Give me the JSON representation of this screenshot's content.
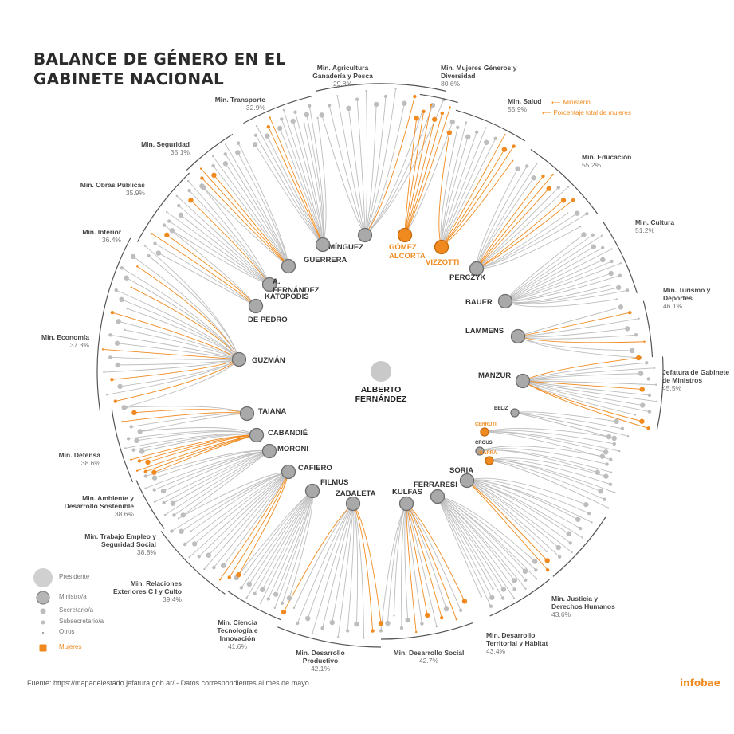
{
  "title": "BALANCE DE GÉNERO EN EL GABINETE NACIONAL",
  "president": "ALBERTO FERNÁNDEZ",
  "colors": {
    "line": "#bdbdbd",
    "node": "#a9a9a9",
    "woman": "#f08a1e",
    "text": "#333333",
    "pct": "#777777"
  },
  "ministries": [
    {
      "name": "Min. Agricultura Ganadería y Pesca",
      "pct": "29.8%",
      "minister": "DOMÍNGUEZ",
      "minister_woman": false
    },
    {
      "name": "Min. Mujeres Géneros y Diversidad",
      "pct": "80.6%",
      "minister": "GÓMEZ ALCORTA",
      "minister_woman": true
    },
    {
      "name": "Min. Salud",
      "pct": "55.9%",
      "minister": "VIZZOTTI",
      "minister_woman": true
    },
    {
      "name": "Min. Educación",
      "pct": "55.2%",
      "minister": "PERCZYK",
      "minister_woman": false
    },
    {
      "name": "Min. Cultura",
      "pct": "51.2%",
      "minister": "BAUER",
      "minister_woman": false
    },
    {
      "name": "Min. Turismo y Deportes",
      "pct": "46.1%",
      "minister": "LAMMENS",
      "minister_woman": false
    },
    {
      "name": "Jefatura de Gabinete de Ministros",
      "pct": "45.5%",
      "minister": "MANZUR",
      "minister_woman": false
    },
    {
      "name": "",
      "pct": "",
      "minister": "BELIZ",
      "minister_woman": false
    },
    {
      "name": "",
      "pct": "",
      "minister": "CERRUTI",
      "minister_woman": true
    },
    {
      "name": "",
      "pct": "",
      "minister": "CROUS",
      "minister_woman": false
    },
    {
      "name": "",
      "pct": "",
      "minister": "IBARRA",
      "minister_woman": true
    },
    {
      "name": "Min. Justicia y Derechos Humanos",
      "pct": "43.6%",
      "minister": "SORIA",
      "minister_woman": false
    },
    {
      "name": "Min. Desarrollo Territorial y Hábitat",
      "pct": "43.4%",
      "minister": "FERRARESI",
      "minister_woman": false
    },
    {
      "name": "Min. Desarrollo Social",
      "pct": "42.7%",
      "minister": "KULFAS",
      "minister_woman": false
    },
    {
      "name": "Min. Desarrollo Productivo",
      "pct": "42.1%",
      "minister": "ZABALETA",
      "minister_woman": false
    },
    {
      "name": "Min. Ciencia Tecnología e Innovación",
      "pct": "41.6%",
      "minister": "FILMUS",
      "minister_woman": false
    },
    {
      "name": "Min. Relaciones Exteriores C I y Culto",
      "pct": "39.4%",
      "minister": "CAFIERO",
      "minister_woman": false
    },
    {
      "name": "Min. Trabajo Empleo y Seguridad Social",
      "pct": "38.8%",
      "minister": "MORONI",
      "minister_woman": false
    },
    {
      "name": "Min. Ambiente y Desarrollo Sostenible",
      "pct": "38.6%",
      "minister": "CABANDIÉ",
      "minister_woman": false
    },
    {
      "name": "Min. Defensa",
      "pct": "38.6%",
      "minister": "TAIANA",
      "minister_woman": false
    },
    {
      "name": "Min. Economía",
      "pct": "37.3%",
      "minister": "GUZMÁN",
      "minister_woman": false
    },
    {
      "name": "Min. Interior",
      "pct": "36.4%",
      "minister": "DE PEDRO",
      "minister_woman": false
    },
    {
      "name": "Min. Obras Públicas",
      "pct": "35.9%",
      "minister": "KATOPODIS",
      "minister_woman": false
    },
    {
      "name": "Min. Seguridad",
      "pct": "35.1%",
      "minister": "A. FERNÁNDEZ",
      "minister_woman": false
    },
    {
      "name": "Min. Transporte",
      "pct": "32.9%",
      "minister": "GUERRERA",
      "minister_woman": false
    }
  ],
  "legend": {
    "items": [
      "Presidente",
      "Ministro/a",
      "Secretario/a",
      "Subsecretario/a",
      "Otros",
      "Mujeres"
    ],
    "annotations": [
      "Ministerio",
      "Porcentaje total de mujeres"
    ]
  },
  "source": "Fuente: https://mapadelestado.jefatura.gob.ar/ - Datos correspondientes al mes de mayo",
  "brand": "infobae"
}
